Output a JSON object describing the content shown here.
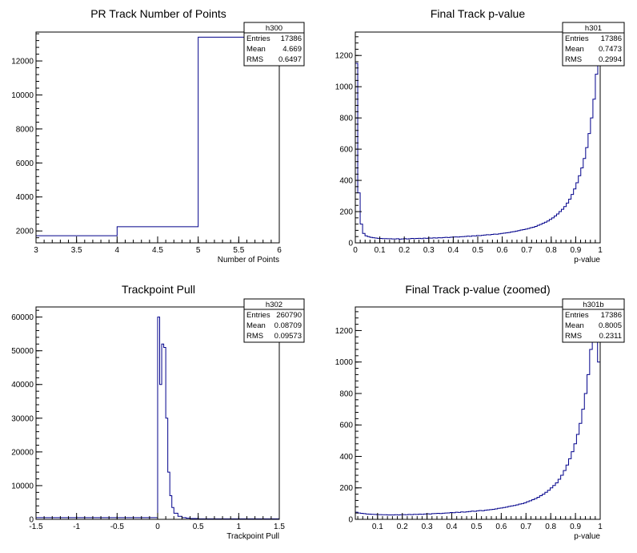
{
  "chart_data": [
    {
      "name": "h300",
      "type": "histogram",
      "title": "PR Track Number of Points",
      "xlabel": "Number of Points",
      "ylabel": "",
      "xlim": [
        3,
        6
      ],
      "ylim": [
        1300,
        13700
      ],
      "xticks": [
        "3",
        "3.5",
        "4",
        "4.5",
        "5",
        "5.5",
        "6"
      ],
      "xtick_values": [
        3,
        3.5,
        4,
        4.5,
        5,
        5.5,
        6
      ],
      "yticks": [
        "2000",
        "4000",
        "6000",
        "8000",
        "10000",
        "12000"
      ],
      "ytick_values": [
        2000,
        4000,
        6000,
        8000,
        10000,
        12000
      ],
      "bin_edges": [
        3,
        4,
        5,
        6
      ],
      "values": [
        1720,
        2250,
        13400
      ],
      "stats": {
        "name": "h300",
        "entries": "17386",
        "mean": "4.669",
        "rms": "0.6497"
      }
    },
    {
      "name": "h301",
      "type": "histogram",
      "title": "Final Track p-value",
      "xlabel": "p-value",
      "ylabel": "",
      "xlim": [
        0,
        1
      ],
      "ylim": [
        0,
        1350
      ],
      "xticks": [
        "0",
        "0.1",
        "0.2",
        "0.3",
        "0.4",
        "0.5",
        "0.6",
        "0.7",
        "0.8",
        "0.9",
        "1"
      ],
      "xtick_values": [
        0,
        0.1,
        0.2,
        0.3,
        0.4,
        0.5,
        0.6,
        0.7,
        0.8,
        0.9,
        1
      ],
      "yticks": [
        "0",
        "200",
        "400",
        "600",
        "800",
        "1000",
        "1200"
      ],
      "ytick_values": [
        0,
        200,
        400,
        600,
        800,
        1000,
        1200
      ],
      "bin_edges_range": [
        0,
        1
      ],
      "values": [
        1150,
        320,
        120,
        60,
        45,
        40,
        35,
        33,
        31,
        29,
        28,
        27,
        27,
        26,
        26,
        25,
        25,
        26,
        24,
        25,
        27,
        25,
        26,
        28,
        27,
        28,
        29,
        27,
        30,
        29,
        31,
        30,
        32,
        31,
        33,
        32,
        34,
        35,
        34,
        36,
        37,
        38,
        37,
        39,
        40,
        41,
        43,
        42,
        45,
        44,
        47,
        46,
        48,
        50,
        52,
        51,
        54,
        56,
        55,
        58,
        60,
        62,
        64,
        66,
        70,
        72,
        75,
        78,
        82,
        85,
        88,
        92,
        97,
        100,
        105,
        112,
        118,
        125,
        132,
        140,
        150,
        160,
        172,
        185,
        200,
        215,
        232,
        255,
        280,
        310,
        345,
        385,
        430,
        480,
        540,
        610,
        700,
        800,
        920,
        1080,
        1160
      ],
      "stats": {
        "name": "h301",
        "entries": "17386",
        "mean": "0.7473",
        "rms": "0.2994"
      }
    },
    {
      "name": "h302",
      "type": "histogram",
      "title": "Trackpoint Pull",
      "xlabel": "Trackpoint Pull",
      "ylabel": "",
      "xlim": [
        -1.5,
        1.5
      ],
      "ylim": [
        0,
        63000
      ],
      "xticks": [
        "-1.5",
        "-1",
        "-0.5",
        "0",
        "0.5",
        "1",
        "1.5"
      ],
      "xtick_values": [
        -1.5,
        -1,
        -0.5,
        0,
        0.5,
        1,
        1.5
      ],
      "yticks": [
        "0",
        "10000",
        "20000",
        "30000",
        "40000",
        "50000",
        "60000"
      ],
      "ytick_values": [
        0,
        10000,
        20000,
        30000,
        40000,
        50000,
        60000
      ],
      "bin_edges": [
        -1.5,
        0,
        0.025,
        0.05,
        0.075,
        0.1,
        0.125,
        0.15,
        0.175,
        0.2,
        0.25,
        0.3,
        0.35,
        0.4,
        0.5,
        1.5
      ],
      "values": [
        500,
        60000,
        40000,
        52000,
        51000,
        30000,
        14000,
        7000,
        3500,
        1800,
        900,
        500,
        350,
        250,
        150
      ],
      "stats": {
        "name": "h302",
        "entries": "260790",
        "mean": "0.08709",
        "rms": "0.09573"
      }
    },
    {
      "name": "h301b",
      "type": "histogram",
      "title": "Final Track p-value (zoomed)",
      "xlabel": "p-value",
      "ylabel": "",
      "xlim": [
        0.01,
        1
      ],
      "ylim": [
        0,
        1350
      ],
      "xticks": [
        "0.1",
        "0.2",
        "0.3",
        "0.4",
        "0.5",
        "0.6",
        "0.7",
        "0.8",
        "0.9",
        "1"
      ],
      "xtick_values": [
        0.1,
        0.2,
        0.3,
        0.4,
        0.5,
        0.6,
        0.7,
        0.8,
        0.9,
        1
      ],
      "yticks": [
        "0",
        "200",
        "400",
        "600",
        "800",
        "1000",
        "1200"
      ],
      "ytick_values": [
        0,
        200,
        400,
        600,
        800,
        1000,
        1200
      ],
      "bin_edges_range": [
        0.01,
        1
      ],
      "values": [
        45,
        40,
        38,
        36,
        34,
        33,
        32,
        31,
        30,
        30,
        29,
        29,
        28,
        28,
        28,
        29,
        28,
        29,
        30,
        29,
        31,
        30,
        32,
        31,
        33,
        32,
        34,
        35,
        34,
        36,
        37,
        38,
        37,
        39,
        40,
        41,
        43,
        42,
        45,
        44,
        47,
        46,
        48,
        50,
        52,
        51,
        54,
        56,
        55,
        58,
        60,
        62,
        64,
        66,
        70,
        72,
        75,
        78,
        82,
        85,
        88,
        92,
        97,
        100,
        105,
        112,
        118,
        125,
        132,
        140,
        150,
        160,
        172,
        185,
        200,
        215,
        232,
        255,
        280,
        310,
        345,
        385,
        430,
        480,
        540,
        610,
        700,
        800,
        920,
        1080,
        1160,
        1180,
        1000
      ],
      "stats": {
        "name": "h301b",
        "entries": "17386",
        "mean": "0.8005",
        "rms": "0.2311"
      }
    }
  ],
  "colors": {
    "line": "#00008b",
    "frame": "#000000"
  },
  "stat_labels": {
    "entries": "Entries",
    "mean": "Mean",
    "rms": "RMS"
  }
}
